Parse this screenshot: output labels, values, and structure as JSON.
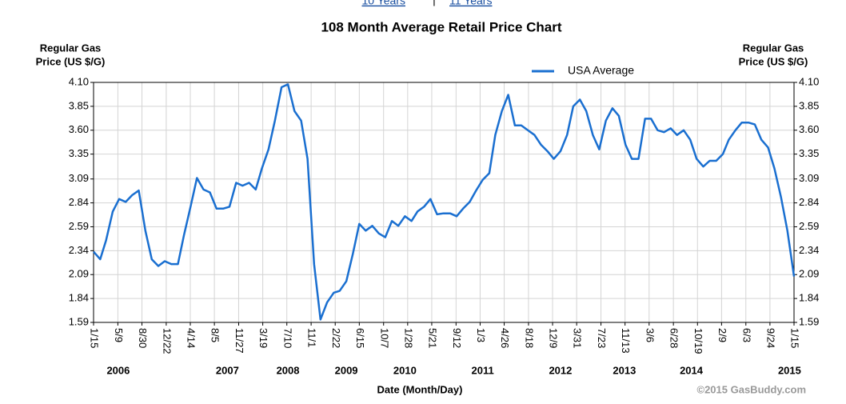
{
  "links": [
    "10 Years",
    "11 Years"
  ],
  "chart_data": {
    "type": "line",
    "title": "108 Month Average Retail Price Chart",
    "ylabel": [
      "Regular Gas",
      "Price (US $/G)"
    ],
    "y2label": [
      "Regular Gas",
      "Price (US $/G)"
    ],
    "xlabel": "Date (Month/Day)",
    "credit": "©2015 GasBuddy.com",
    "legend": "top",
    "grid": true,
    "ylim": [
      1.59,
      4.1
    ],
    "yticks": [
      1.59,
      1.84,
      2.09,
      2.34,
      2.59,
      2.84,
      3.09,
      3.35,
      {
        "value": 3.6,
        "label": "3.60"
      },
      3.85,
      {
        "value": 4.1,
        "label": "4.10"
      }
    ],
    "xlim": [
      "2006-01-15",
      "2015-01-15"
    ],
    "xticks": [
      {
        "value": "2006-01-15",
        "label": "1/15"
      },
      {
        "value": "2006-05-09",
        "label": "5/9"
      },
      {
        "value": "2006-08-30",
        "label": "8/30"
      },
      {
        "value": "2006-12-22",
        "label": "12/22"
      },
      {
        "value": "2007-04-14",
        "label": "4/14"
      },
      {
        "value": "2007-08-05",
        "label": "8/5"
      },
      {
        "value": "2007-11-27",
        "label": "11/27"
      },
      {
        "value": "2008-03-19",
        "label": "3/19"
      },
      {
        "value": "2008-07-10",
        "label": "7/10"
      },
      {
        "value": "2008-11-01",
        "label": "11/1"
      },
      {
        "value": "2009-02-22",
        "label": "2/22"
      },
      {
        "value": "2009-06-15",
        "label": "6/15"
      },
      {
        "value": "2009-10-07",
        "label": "10/7"
      },
      {
        "value": "2010-01-28",
        "label": "1/28"
      },
      {
        "value": "2010-05-21",
        "label": "5/21"
      },
      {
        "value": "2010-09-12",
        "label": "9/12"
      },
      {
        "value": "2011-01-03",
        "label": "1/3"
      },
      {
        "value": "2011-04-26",
        "label": "4/26"
      },
      {
        "value": "2011-08-18",
        "label": "8/18"
      },
      {
        "value": "2011-12-09",
        "label": "12/9"
      },
      {
        "value": "2012-03-31",
        "label": "3/31"
      },
      {
        "value": "2012-07-23",
        "label": "7/23"
      },
      {
        "value": "2012-11-13",
        "label": "11/13"
      },
      {
        "value": "2013-03-06",
        "label": "3/6"
      },
      {
        "value": "2013-06-28",
        "label": "6/28"
      },
      {
        "value": "2013-10-19",
        "label": "10/19"
      },
      {
        "value": "2014-02-09",
        "label": "2/9"
      },
      {
        "value": "2014-06-03",
        "label": "6/3"
      },
      {
        "value": "2014-09-24",
        "label": "9/24"
      },
      {
        "value": "2015-01-15",
        "label": "1/15"
      }
    ],
    "year_labels": [
      {
        "value": "2006-05-11",
        "label": "2006"
      },
      {
        "value": "2007-10-05",
        "label": "2007"
      },
      {
        "value": "2008-07-15",
        "label": "2008"
      },
      {
        "value": "2009-04-15",
        "label": "2009"
      },
      {
        "value": "2010-01-15",
        "label": "2010"
      },
      {
        "value": "2011-01-15",
        "label": "2011"
      },
      {
        "value": "2012-01-15",
        "label": "2012"
      },
      {
        "value": "2012-11-10",
        "label": "2013"
      },
      {
        "value": "2013-09-20",
        "label": "2014"
      },
      {
        "value": "2014-12-25",
        "label": "2015"
      }
    ],
    "x": [
      "2006-01-15",
      "2006-02-15",
      "2006-03-15",
      "2006-04-15",
      "2006-05-15",
      "2006-06-15",
      "2006-07-15",
      "2006-08-15",
      "2006-09-15",
      "2006-10-15",
      "2006-11-15",
      "2006-12-15",
      "2007-01-15",
      "2007-02-15",
      "2007-03-15",
      "2007-04-15",
      "2007-05-15",
      "2007-06-15",
      "2007-07-15",
      "2007-08-15",
      "2007-09-15",
      "2007-10-15",
      "2007-11-15",
      "2007-12-15",
      "2008-01-15",
      "2008-02-15",
      "2008-03-15",
      "2008-04-15",
      "2008-05-15",
      "2008-06-15",
      "2008-07-15",
      "2008-08-15",
      "2008-09-15",
      "2008-10-15",
      "2008-11-15",
      "2008-12-15",
      "2009-01-15",
      "2009-02-15",
      "2009-03-15",
      "2009-04-15",
      "2009-05-15",
      "2009-06-15",
      "2009-07-15",
      "2009-08-15",
      "2009-09-15",
      "2009-10-15",
      "2009-11-15",
      "2009-12-15",
      "2010-01-15",
      "2010-02-15",
      "2010-03-15",
      "2010-04-15",
      "2010-05-15",
      "2010-06-15",
      "2010-07-15",
      "2010-08-15",
      "2010-09-15",
      "2010-10-15",
      "2010-11-15",
      "2010-12-15",
      "2011-01-15",
      "2011-02-15",
      "2011-03-15",
      "2011-04-15",
      "2011-05-15",
      "2011-06-15",
      "2011-07-15",
      "2011-08-15",
      "2011-09-15",
      "2011-10-15",
      "2011-11-15",
      "2011-12-15",
      "2012-01-15",
      "2012-02-15",
      "2012-03-15",
      "2012-04-15",
      "2012-05-15",
      "2012-06-15",
      "2012-07-15",
      "2012-08-15",
      "2012-09-15",
      "2012-10-15",
      "2012-11-15",
      "2012-12-15",
      "2013-01-15",
      "2013-02-15",
      "2013-03-15",
      "2013-04-15",
      "2013-05-15",
      "2013-06-15",
      "2013-07-15",
      "2013-08-15",
      "2013-09-15",
      "2013-10-15",
      "2013-11-15",
      "2013-12-15",
      "2014-01-15",
      "2014-02-15",
      "2014-03-15",
      "2014-04-15",
      "2014-05-15",
      "2014-06-15",
      "2014-07-15",
      "2014-08-15",
      "2014-09-15",
      "2014-10-15",
      "2014-11-15",
      "2014-12-15",
      "2015-01-15"
    ],
    "series": [
      {
        "name": "USA Average",
        "color": "#1a6fd0",
        "values": [
          2.33,
          2.25,
          2.45,
          2.75,
          2.88,
          2.85,
          2.92,
          2.97,
          2.55,
          2.25,
          2.18,
          2.23,
          2.2,
          2.2,
          2.5,
          2.8,
          3.1,
          2.98,
          2.95,
          2.78,
          2.78,
          2.8,
          3.05,
          3.02,
          3.05,
          2.98,
          3.2,
          3.4,
          3.7,
          4.05,
          4.08,
          3.8,
          3.7,
          3.3,
          2.2,
          1.62,
          1.8,
          1.9,
          1.92,
          2.02,
          2.3,
          2.62,
          2.55,
          2.6,
          2.52,
          2.48,
          2.65,
          2.6,
          2.7,
          2.65,
          2.75,
          2.8,
          2.88,
          2.72,
          2.73,
          2.73,
          2.7,
          2.78,
          2.85,
          2.97,
          3.08,
          3.15,
          3.55,
          3.8,
          3.97,
          3.65,
          3.65,
          3.6,
          3.55,
          3.45,
          3.38,
          3.3,
          3.38,
          3.55,
          3.85,
          3.92,
          3.8,
          3.55,
          3.4,
          3.7,
          3.83,
          3.75,
          3.45,
          3.3,
          3.3,
          3.72,
          3.72,
          3.6,
          3.58,
          3.62,
          3.55,
          3.6,
          3.5,
          3.3,
          3.22,
          3.28,
          3.28,
          3.35,
          3.5,
          3.6,
          3.68,
          3.68,
          3.66,
          3.5,
          3.42,
          3.2,
          2.9,
          2.55,
          2.07
        ]
      }
    ]
  }
}
